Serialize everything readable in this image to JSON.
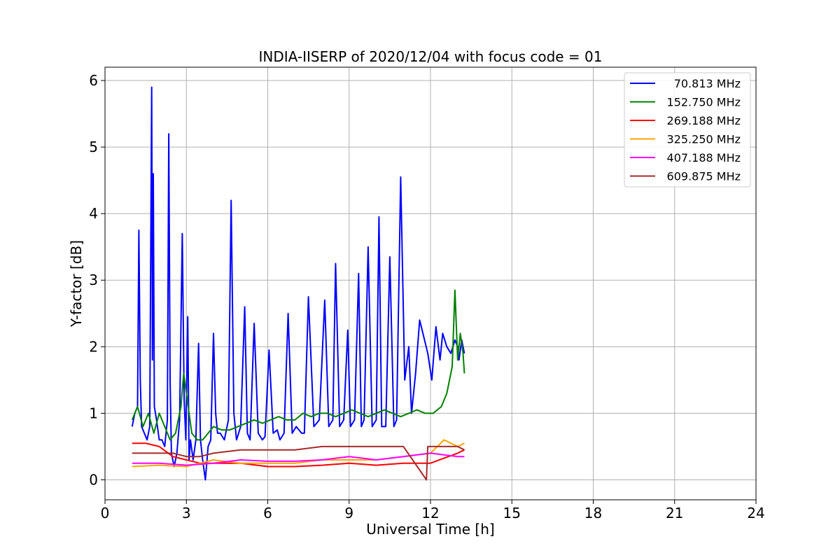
{
  "chart_data": {
    "type": "line",
    "title": "INDIA-IISERP of 2020/12/04 with focus code = 01",
    "xlabel": "Universal Time [h]",
    "ylabel": "Y-factor [dB]",
    "xlim": [
      0,
      24
    ],
    "ylim": [
      -0.3,
      6.2
    ],
    "xticks": [
      0,
      3,
      6,
      9,
      12,
      15,
      18,
      21,
      24
    ],
    "yticks": [
      0,
      1,
      2,
      3,
      4,
      5,
      6
    ],
    "xtick_labels": [
      "0",
      "3",
      "6",
      "9",
      "12",
      "15",
      "18",
      "21",
      "24"
    ],
    "ytick_labels": [
      "0",
      "1",
      "2",
      "3",
      "4",
      "5",
      "6"
    ],
    "grid": true,
    "legend_position": "top-right",
    "series": [
      {
        "name": "70.813 MHz",
        "color": "#0000ff",
        "x": [
          1.0,
          1.1,
          1.2,
          1.25,
          1.3,
          1.35,
          1.45,
          1.55,
          1.65,
          1.72,
          1.75,
          1.78,
          1.82,
          1.9,
          2.0,
          2.1,
          2.2,
          2.3,
          2.35,
          2.4,
          2.45,
          2.55,
          2.65,
          2.75,
          2.85,
          2.92,
          2.98,
          3.05,
          3.1,
          3.15,
          3.25,
          3.35,
          3.45,
          3.52,
          3.6,
          3.7,
          3.8,
          3.9,
          4.0,
          4.08,
          4.15,
          4.25,
          4.4,
          4.55,
          4.65,
          4.75,
          4.85,
          5.0,
          5.15,
          5.25,
          5.35,
          5.5,
          5.65,
          5.8,
          5.9,
          6.05,
          6.2,
          6.35,
          6.45,
          6.6,
          6.75,
          6.9,
          7.05,
          7.25,
          7.35,
          7.5,
          7.7,
          7.9,
          8.1,
          8.25,
          8.4,
          8.5,
          8.65,
          8.8,
          8.95,
          9.05,
          9.2,
          9.35,
          9.45,
          9.55,
          9.7,
          9.85,
          10.0,
          10.1,
          10.2,
          10.35,
          10.5,
          10.65,
          10.75,
          10.9,
          11.05,
          11.2,
          11.3,
          11.45,
          11.6,
          11.78,
          11.9,
          12.05,
          12.2,
          12.35,
          12.45,
          12.6,
          12.75,
          12.9,
          13.0,
          13.05,
          13.15,
          13.25
        ],
        "y": [
          0.8,
          1.0,
          1.1,
          3.75,
          1.5,
          0.8,
          0.7,
          0.6,
          0.8,
          5.9,
          1.8,
          4.6,
          1.1,
          0.9,
          0.6,
          0.6,
          0.5,
          0.9,
          5.2,
          1.5,
          0.4,
          0.2,
          0.4,
          0.9,
          3.7,
          1.2,
          0.6,
          2.45,
          0.3,
          0.6,
          0.3,
          0.6,
          2.05,
          0.6,
          0.3,
          0.0,
          0.5,
          0.6,
          2.2,
          1.0,
          0.7,
          0.7,
          0.6,
          0.9,
          4.2,
          1.0,
          0.6,
          0.8,
          2.6,
          0.7,
          0.6,
          2.35,
          0.7,
          0.6,
          0.65,
          1.95,
          0.7,
          0.75,
          0.6,
          0.7,
          2.5,
          0.7,
          0.8,
          0.7,
          0.7,
          2.75,
          0.8,
          0.9,
          2.7,
          0.8,
          0.9,
          3.25,
          0.8,
          0.9,
          2.25,
          0.8,
          0.9,
          3.1,
          0.8,
          0.9,
          3.5,
          0.8,
          0.9,
          3.95,
          0.8,
          0.8,
          3.35,
          0.8,
          0.9,
          4.55,
          1.5,
          2.0,
          1.0,
          1.6,
          2.4,
          2.1,
          1.9,
          1.5,
          2.3,
          1.8,
          2.2,
          2.0,
          1.9,
          2.1,
          2.0,
          1.8,
          2.1,
          1.9
        ]
      },
      {
        "name": "152.750 MHz",
        "color": "#008000",
        "x": [
          1.0,
          1.2,
          1.4,
          1.6,
          1.8,
          2.0,
          2.2,
          2.4,
          2.6,
          2.8,
          2.9,
          3.0,
          3.2,
          3.4,
          3.6,
          3.8,
          4.0,
          4.3,
          4.6,
          4.9,
          5.2,
          5.5,
          5.8,
          6.1,
          6.4,
          6.7,
          7.0,
          7.3,
          7.6,
          7.9,
          8.2,
          8.5,
          8.8,
          9.1,
          9.4,
          9.7,
          10.0,
          10.3,
          10.6,
          10.9,
          11.2,
          11.5,
          11.8,
          12.1,
          12.4,
          12.6,
          12.8,
          12.9,
          13.0,
          13.1,
          13.2,
          13.25
        ],
        "y": [
          0.9,
          1.1,
          0.8,
          1.0,
          0.7,
          1.0,
          0.8,
          0.6,
          0.7,
          1.1,
          1.6,
          1.3,
          0.7,
          0.6,
          0.6,
          0.7,
          0.8,
          0.75,
          0.75,
          0.8,
          0.85,
          0.9,
          0.85,
          0.9,
          0.95,
          0.9,
          0.9,
          1.0,
          0.95,
          1.0,
          1.0,
          0.95,
          1.0,
          1.05,
          1.0,
          0.95,
          1.0,
          1.05,
          1.0,
          0.95,
          1.0,
          1.05,
          1.0,
          1.0,
          1.1,
          1.3,
          1.7,
          2.85,
          1.8,
          2.2,
          1.9,
          1.6
        ]
      },
      {
        "name": "269.188 MHz",
        "color": "#ff0000",
        "x": [
          1.0,
          1.5,
          2.0,
          2.5,
          3.0,
          3.5,
          4.0,
          5.0,
          6.0,
          7.0,
          8.0,
          9.0,
          10.0,
          11.0,
          12.0,
          13.0,
          13.25
        ],
        "y": [
          0.55,
          0.55,
          0.5,
          0.35,
          0.3,
          0.25,
          0.25,
          0.25,
          0.2,
          0.2,
          0.22,
          0.25,
          0.22,
          0.25,
          0.25,
          0.4,
          0.45
        ]
      },
      {
        "name": "325.250 MHz",
        "color": "#ffa500",
        "x": [
          1.0,
          2.0,
          3.0,
          4.0,
          5.0,
          6.0,
          7.0,
          8.0,
          9.0,
          10.0,
          11.0,
          12.0,
          12.5,
          13.0,
          13.25
        ],
        "y": [
          0.2,
          0.22,
          0.2,
          0.3,
          0.25,
          0.25,
          0.25,
          0.3,
          0.3,
          0.3,
          0.35,
          0.4,
          0.6,
          0.5,
          0.55
        ]
      },
      {
        "name": "407.188 MHz",
        "color": "#ff00ff",
        "x": [
          1.0,
          2.0,
          3.0,
          4.0,
          5.0,
          6.0,
          7.0,
          8.0,
          9.0,
          10.0,
          11.0,
          12.0,
          13.0,
          13.25
        ],
        "y": [
          0.25,
          0.25,
          0.22,
          0.25,
          0.3,
          0.28,
          0.28,
          0.3,
          0.35,
          0.3,
          0.35,
          0.4,
          0.35,
          0.35
        ]
      },
      {
        "name": "609.875 MHz",
        "color": "#a52a2a",
        "x": [
          1.0,
          1.5,
          2.0,
          2.5,
          3.0,
          3.5,
          4.0,
          5.0,
          6.0,
          7.0,
          8.0,
          9.0,
          10.0,
          11.0,
          11.85,
          11.9,
          12.0,
          13.0,
          13.25
        ],
        "y": [
          0.4,
          0.4,
          0.4,
          0.4,
          0.35,
          0.35,
          0.4,
          0.45,
          0.45,
          0.45,
          0.5,
          0.5,
          0.5,
          0.5,
          0.0,
          0.5,
          0.5,
          0.5,
          0.45
        ]
      }
    ]
  }
}
